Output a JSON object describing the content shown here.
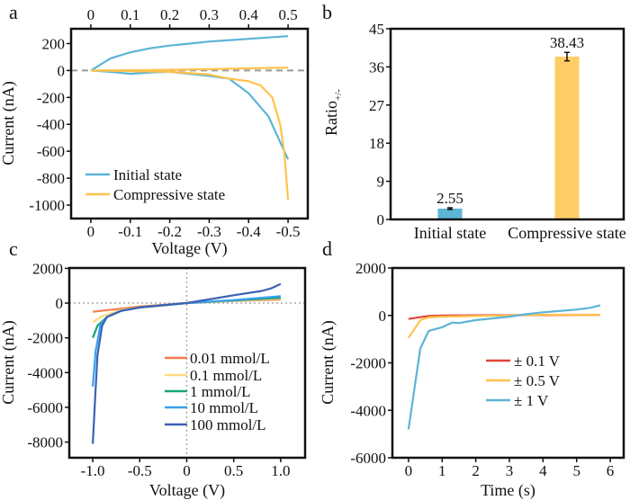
{
  "panel_letters": [
    "a",
    "b",
    "c",
    "d"
  ],
  "chart_data": [
    {
      "panel": "a",
      "type": "line",
      "xlabel": "Voltage (V)",
      "ylabel": "Current (nA)",
      "xlim": [
        0.05,
        -0.55
      ],
      "ylim": [
        -1100,
        310
      ],
      "xticks_bottom": [
        0,
        -0.1,
        -0.2,
        -0.3,
        -0.4,
        -0.5
      ],
      "xticklabels_bottom": [
        "0",
        "-0.1",
        "-0.2",
        "-0.3",
        "-0.4",
        "-0.5"
      ],
      "xticks_top": [
        0,
        0.1,
        0.2,
        0.3,
        0.4,
        0.5
      ],
      "xticklabels_top": [
        "0",
        "0.1",
        "0.2",
        "0.3",
        "0.4",
        "0.5"
      ],
      "yticks": [
        200,
        0,
        -200,
        -400,
        -600,
        -800,
        -1000
      ],
      "yticklabels": [
        "200",
        "0",
        "-200",
        "-400",
        "-600",
        "-800",
        "-1000"
      ],
      "zero_line": "dashed",
      "legend_position": "bottom-left",
      "legend": [
        "Initial state",
        "Compressive state"
      ],
      "series": [
        {
          "name": "Initial state",
          "color": "#5bb5d5",
          "axis": "top",
          "x": [
            0,
            0.05,
            0.1,
            0.15,
            0.2,
            0.25,
            0.3,
            0.4,
            0.5
          ],
          "y": [
            0,
            90,
            135,
            165,
            185,
            200,
            215,
            235,
            255
          ]
        },
        {
          "name": "Initial state",
          "color": "#5bb5d5",
          "axis": "bottom",
          "x": [
            0,
            -0.05,
            -0.1,
            -0.15,
            -0.2,
            -0.25,
            -0.3,
            -0.35,
            -0.4,
            -0.45,
            -0.5
          ],
          "y": [
            0,
            -10,
            -25,
            -15,
            -10,
            -25,
            -40,
            -60,
            -170,
            -340,
            -660
          ]
        },
        {
          "name": "Compressive state",
          "color": "#ffc34d",
          "axis": "top",
          "x": [
            0,
            0.1,
            0.2,
            0.3,
            0.4,
            0.5
          ],
          "y": [
            0,
            2,
            5,
            10,
            16,
            22
          ]
        },
        {
          "name": "Compressive state",
          "color": "#ffc34d",
          "axis": "bottom",
          "x": [
            0,
            -0.1,
            -0.2,
            -0.25,
            -0.3,
            -0.35,
            -0.4,
            -0.43,
            -0.46,
            -0.48,
            -0.49,
            -0.5
          ],
          "y": [
            0,
            -5,
            -10,
            -20,
            -30,
            -60,
            -80,
            -110,
            -200,
            -400,
            -600,
            -960
          ]
        }
      ]
    },
    {
      "panel": "b",
      "type": "bar",
      "ylabel": "Ratio",
      "ylabel_subscript": "+/-",
      "categories": [
        "Initial state",
        "Compressive state"
      ],
      "values": [
        2.55,
        38.43
      ],
      "value_labels": [
        "2.55",
        "38.43"
      ],
      "errors": [
        0.2,
        1.0
      ],
      "colors": [
        "#5bb5d5",
        "#ffcd66"
      ],
      "ylim": [
        0,
        45
      ],
      "yticks": [
        0,
        9,
        18,
        27,
        36,
        45
      ],
      "yticklabels": [
        "0",
        "9",
        "18",
        "27",
        "36",
        "45"
      ]
    },
    {
      "panel": "c",
      "type": "line",
      "xlabel": "Voltage (V)",
      "ylabel": "Current (nA)",
      "xlim": [
        -1.25,
        1.26
      ],
      "ylim": [
        -8900,
        2020
      ],
      "xticks": [
        -1.0,
        -0.5,
        0,
        0.5,
        1.0
      ],
      "xticklabels": [
        "-1.0",
        "-0.5",
        "0",
        "0.5",
        "1.0"
      ],
      "yticks": [
        2000,
        0,
        -2000,
        -4000,
        -6000,
        -8000
      ],
      "yticklabels": [
        "2000",
        "0",
        "-2000",
        "-4000",
        "-6000",
        "-8000"
      ],
      "zero_line": "dotted",
      "legend_position": "center-right",
      "legend": [
        "0.01 mmol/L",
        "0.1 mmol/L",
        "1 mmol/L",
        "10 mmol/L",
        "100 mmol/L"
      ],
      "series": [
        {
          "name": "0.01 mmol/L",
          "color": "#f47c4c",
          "x": [
            -1,
            -0.5,
            0,
            0.5,
            1
          ],
          "y": [
            -500,
            -200,
            0,
            120,
            200
          ]
        },
        {
          "name": "0.1 mmol/L",
          "color": "#ffd980",
          "x": [
            -1,
            -0.9,
            -0.7,
            -0.5,
            0,
            0.5,
            1
          ],
          "y": [
            -1100,
            -750,
            -400,
            -250,
            0,
            130,
            250
          ]
        },
        {
          "name": "1 mmol/L",
          "color": "#1aa37a",
          "x": [
            -1,
            -0.95,
            -0.85,
            -0.7,
            -0.5,
            0,
            0.5,
            1
          ],
          "y": [
            -2000,
            -1300,
            -800,
            -450,
            -250,
            0,
            150,
            300
          ]
        },
        {
          "name": "10 mmol/L",
          "color": "#3aa0f0",
          "x": [
            -1,
            -0.97,
            -0.92,
            -0.85,
            -0.7,
            -0.5,
            0,
            0.5,
            1
          ],
          "y": [
            -4800,
            -2800,
            -1300,
            -800,
            -450,
            -250,
            0,
            170,
            400
          ]
        },
        {
          "name": "100 mmol/L",
          "color": "#3a62b5",
          "x": [
            -1,
            -0.97,
            -0.95,
            -0.9,
            -0.85,
            -0.7,
            -0.5,
            0,
            0.5,
            0.8,
            0.9,
            1
          ],
          "y": [
            -8100,
            -5000,
            -3000,
            -1300,
            -800,
            -450,
            -250,
            0,
            450,
            700,
            850,
            1100
          ]
        }
      ]
    },
    {
      "panel": "d",
      "type": "line",
      "xlabel": "Time (s)",
      "ylabel": "Current (nA)",
      "xlim": [
        -0.48,
        6.4
      ],
      "ylim": [
        -6000,
        2000
      ],
      "xticks": [
        0,
        1,
        2,
        3,
        4,
        5,
        6
      ],
      "xticklabels": [
        "0",
        "1",
        "2",
        "3",
        "4",
        "5",
        "6"
      ],
      "yticks": [
        2000,
        0,
        -2000,
        -4000,
        -6000
      ],
      "yticklabels": [
        "2000",
        "0",
        "-2000",
        "-4000",
        "-6000"
      ],
      "legend_position": "center-right",
      "legend": [
        "± 0.1 V",
        "± 0.5 V",
        "± 1 V"
      ],
      "series": [
        {
          "name": "± 0.1 V",
          "color": "#e0453a",
          "x": [
            0,
            0.3,
            0.6,
            1,
            2,
            3,
            4,
            5,
            5.7
          ],
          "y": [
            -150,
            -80,
            -20,
            0,
            5,
            10,
            15,
            20,
            20
          ]
        },
        {
          "name": "± 0.5 V",
          "color": "#ffc34d",
          "x": [
            0,
            0.35,
            0.6,
            1,
            2,
            3,
            4,
            5,
            5.7
          ],
          "y": [
            -950,
            -200,
            -80,
            -50,
            -20,
            0,
            30,
            30,
            30
          ]
        },
        {
          "name": "± 1 V",
          "color": "#5bb5d5",
          "x": [
            0,
            0.35,
            0.6,
            1,
            1.3,
            1.5,
            2,
            3,
            3.5,
            4,
            5,
            5.4,
            5.7
          ],
          "y": [
            -4800,
            -1400,
            -650,
            -500,
            -300,
            -320,
            -200,
            -50,
            50,
            130,
            250,
            320,
            430
          ]
        }
      ]
    }
  ]
}
